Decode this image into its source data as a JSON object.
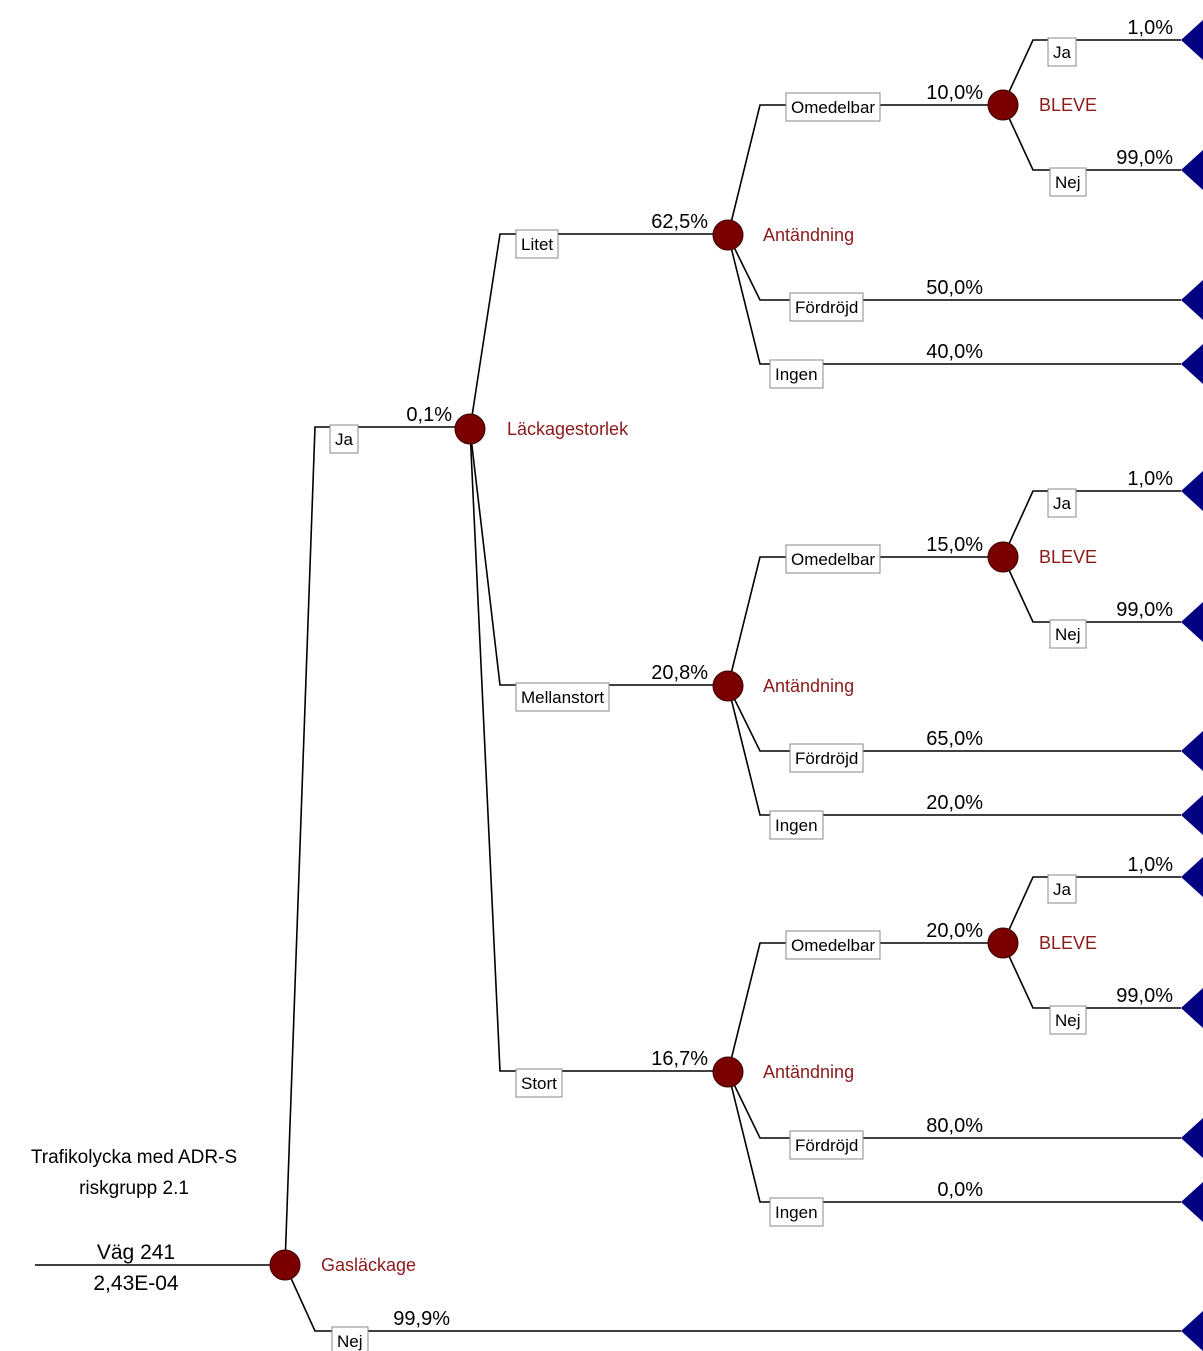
{
  "root": {
    "title_line1": "Trafikolycka med ADR-S",
    "title_line2": "riskgrupp 2.1",
    "location": "Väg 241",
    "frequency": "2,43E-04",
    "node_label": "Gasläckage"
  },
  "gas_leak": {
    "yes": {
      "label": "Ja",
      "prob": "0,1%"
    },
    "no": {
      "label": "Nej",
      "prob": "99,9%"
    },
    "size_node_label": "Läckagestorlek"
  },
  "leak_sizes": [
    {
      "label": "Litet",
      "prob": "62,5%",
      "node_label": "Antändning",
      "immediate": {
        "label": "Omedelbar",
        "prob": "10,0%"
      },
      "bleve": {
        "node_label": "BLEVE",
        "yes": {
          "label": "Ja",
          "prob": "1,0%"
        },
        "no": {
          "label": "Nej",
          "prob": "99,0%"
        }
      },
      "delayed": {
        "label": "Fördröjd",
        "prob": "50,0%"
      },
      "none": {
        "label": "Ingen",
        "prob": "40,0%"
      }
    },
    {
      "label": "Mellanstort",
      "prob": "20,8%",
      "node_label": "Antändning",
      "immediate": {
        "label": "Omedelbar",
        "prob": "15,0%"
      },
      "bleve": {
        "node_label": "BLEVE",
        "yes": {
          "label": "Ja",
          "prob": "1,0%"
        },
        "no": {
          "label": "Nej",
          "prob": "99,0%"
        }
      },
      "delayed": {
        "label": "Fördröjd",
        "prob": "65,0%"
      },
      "none": {
        "label": "Ingen",
        "prob": "20,0%"
      }
    },
    {
      "label": "Stort",
      "prob": "16,7%",
      "node_label": "Antändning",
      "immediate": {
        "label": "Omedelbar",
        "prob": "20,0%"
      },
      "bleve": {
        "node_label": "BLEVE",
        "yes": {
          "label": "Ja",
          "prob": "1,0%"
        },
        "no": {
          "label": "Nej",
          "prob": "99,0%"
        }
      },
      "delayed": {
        "label": "Fördröjd",
        "prob": "80,0%"
      },
      "none": {
        "label": "Ingen",
        "prob": "0,0%"
      }
    }
  ],
  "colors": {
    "chance_node": "#7a0000",
    "node_label": "#8b1a1a",
    "terminal": "#000080",
    "line": "#000000"
  }
}
